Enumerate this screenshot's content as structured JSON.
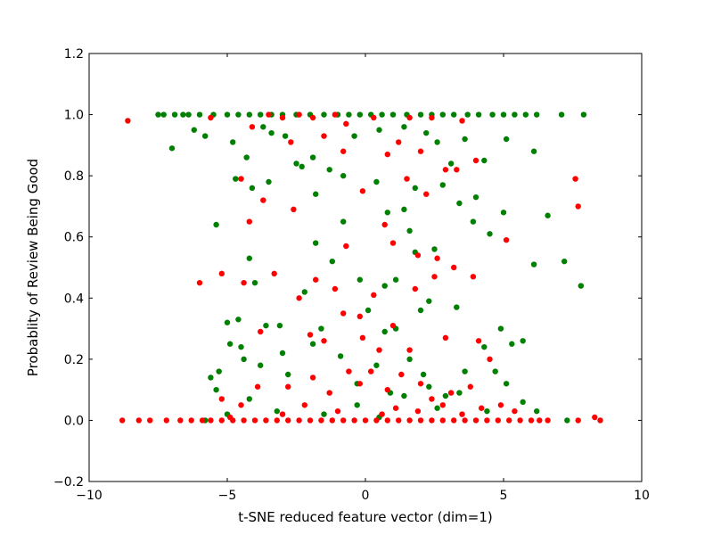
{
  "chart_data": {
    "type": "scatter",
    "xlabel": "t-SNE reduced feature vector (dim=1)",
    "ylabel": "Probablity of Review Being Good",
    "xlim": [
      -10,
      10
    ],
    "ylim": [
      -0.2,
      1.2
    ],
    "xticks": [
      "−10",
      "−5",
      "0",
      "5",
      "10"
    ],
    "yticks": [
      "−0.2",
      "0.0",
      "0.2",
      "0.4",
      "0.6",
      "0.8",
      "1.0",
      "1.2"
    ],
    "grid": false,
    "legend": "none",
    "series": [
      {
        "color": "#008000",
        "points": [
          [
            -7.5,
            1.0
          ],
          [
            -7.3,
            1.0
          ],
          [
            -6.9,
            1.0
          ],
          [
            -6.6,
            1.0
          ],
          [
            -6.4,
            1.0
          ],
          [
            -6.0,
            1.0
          ],
          [
            -5.5,
            1.0
          ],
          [
            -5.0,
            1.0
          ],
          [
            -4.6,
            1.0
          ],
          [
            -4.2,
            1.0
          ],
          [
            -3.8,
            1.0
          ],
          [
            -3.4,
            1.0
          ],
          [
            -3.0,
            1.0
          ],
          [
            -2.5,
            1.0
          ],
          [
            -2.0,
            1.0
          ],
          [
            -1.5,
            1.0
          ],
          [
            -1.0,
            1.0
          ],
          [
            -0.6,
            1.0
          ],
          [
            -0.2,
            1.0
          ],
          [
            0.2,
            1.0
          ],
          [
            0.6,
            1.0
          ],
          [
            1.0,
            1.0
          ],
          [
            1.5,
            1.0
          ],
          [
            2.0,
            1.0
          ],
          [
            2.4,
            1.0
          ],
          [
            2.8,
            1.0
          ],
          [
            3.2,
            1.0
          ],
          [
            3.7,
            1.0
          ],
          [
            4.1,
            1.0
          ],
          [
            4.6,
            1.0
          ],
          [
            5.0,
            1.0
          ],
          [
            5.4,
            1.0
          ],
          [
            5.8,
            1.0
          ],
          [
            6.2,
            1.0
          ],
          [
            7.1,
            1.0
          ],
          [
            7.9,
            1.0
          ],
          [
            -7.0,
            0.89
          ],
          [
            -6.2,
            0.95
          ],
          [
            -5.8,
            0.93
          ],
          [
            -4.8,
            0.91
          ],
          [
            -4.3,
            0.86
          ],
          [
            -3.7,
            0.96
          ],
          [
            -3.4,
            0.94
          ],
          [
            -2.9,
            0.93
          ],
          [
            -2.5,
            0.84
          ],
          [
            -1.9,
            0.86
          ],
          [
            -1.3,
            0.82
          ],
          [
            -0.4,
            0.93
          ],
          [
            0.5,
            0.95
          ],
          [
            1.4,
            0.96
          ],
          [
            2.2,
            0.94
          ],
          [
            2.6,
            0.91
          ],
          [
            3.1,
            0.84
          ],
          [
            3.6,
            0.92
          ],
          [
            4.3,
            0.85
          ],
          [
            5.1,
            0.92
          ],
          [
            6.1,
            0.88
          ],
          [
            -4.7,
            0.79
          ],
          [
            -4.1,
            0.76
          ],
          [
            -3.5,
            0.78
          ],
          [
            -1.8,
            0.74
          ],
          [
            -0.8,
            0.8
          ],
          [
            0.4,
            0.78
          ],
          [
            1.8,
            0.76
          ],
          [
            2.8,
            0.77
          ],
          [
            3.4,
            0.71
          ],
          [
            4.0,
            0.73
          ],
          [
            -5.4,
            0.64
          ],
          [
            -1.8,
            0.58
          ],
          [
            -0.8,
            0.65
          ],
          [
            0.8,
            0.68
          ],
          [
            1.4,
            0.69
          ],
          [
            1.6,
            0.62
          ],
          [
            2.5,
            0.56
          ],
          [
            3.9,
            0.65
          ],
          [
            4.5,
            0.61
          ],
          [
            5.0,
            0.68
          ],
          [
            6.6,
            0.67
          ],
          [
            6.1,
            0.51
          ],
          [
            7.2,
            0.52
          ],
          [
            -4.2,
            0.53
          ],
          [
            -4.0,
            0.45
          ],
          [
            -2.2,
            0.42
          ],
          [
            -1.2,
            0.52
          ],
          [
            0.7,
            0.44
          ],
          [
            1.1,
            0.46
          ],
          [
            1.8,
            0.55
          ],
          [
            2.3,
            0.39
          ],
          [
            3.3,
            0.37
          ],
          [
            7.8,
            0.44
          ],
          [
            -5.0,
            0.32
          ],
          [
            -4.6,
            0.33
          ],
          [
            -3.6,
            0.31
          ],
          [
            -3.1,
            0.31
          ],
          [
            -1.6,
            0.3
          ],
          [
            -0.2,
            0.46
          ],
          [
            0.1,
            0.36
          ],
          [
            0.7,
            0.29
          ],
          [
            1.1,
            0.3
          ],
          [
            2.0,
            0.36
          ],
          [
            -5.6,
            0.14
          ],
          [
            -5.3,
            0.16
          ],
          [
            -4.9,
            0.25
          ],
          [
            -4.5,
            0.24
          ],
          [
            -3.8,
            0.18
          ],
          [
            -2.8,
            0.15
          ],
          [
            -1.9,
            0.25
          ],
          [
            -0.9,
            0.21
          ],
          [
            -0.3,
            0.12
          ],
          [
            0.4,
            0.18
          ],
          [
            1.6,
            0.2
          ],
          [
            2.3,
            0.11
          ],
          [
            2.9,
            0.08
          ],
          [
            3.6,
            0.16
          ],
          [
            4.3,
            0.24
          ],
          [
            4.7,
            0.16
          ],
          [
            5.3,
            0.25
          ],
          [
            5.7,
            0.26
          ],
          [
            5.1,
            0.12
          ],
          [
            6.2,
            0.03
          ],
          [
            -5.8,
            0.0
          ],
          [
            -5.0,
            0.02
          ],
          [
            -4.2,
            0.07
          ],
          [
            -3.2,
            0.03
          ],
          [
            -1.5,
            0.02
          ],
          [
            -0.3,
            0.05
          ],
          [
            0.5,
            0.01
          ],
          [
            1.4,
            0.08
          ],
          [
            2.6,
            0.04
          ],
          [
            3.4,
            0.09
          ],
          [
            4.4,
            0.03
          ],
          [
            5.7,
            0.06
          ],
          [
            7.3,
            0.0
          ],
          [
            -5.4,
            0.1
          ],
          [
            -4.4,
            0.2
          ],
          [
            -3.0,
            0.22
          ],
          [
            0.9,
            0.09
          ],
          [
            2.1,
            0.15
          ],
          [
            4.9,
            0.3
          ],
          [
            -2.3,
            0.83
          ]
        ]
      },
      {
        "color": "#ff0000",
        "points": [
          [
            -8.6,
            0.98
          ],
          [
            -5.6,
            0.99
          ],
          [
            -4.1,
            0.96
          ],
          [
            -3.7,
            0.72
          ],
          [
            -3.5,
            1.0
          ],
          [
            -3.0,
            0.99
          ],
          [
            -2.7,
            0.91
          ],
          [
            -2.4,
            1.0
          ],
          [
            -1.9,
            0.99
          ],
          [
            -1.5,
            0.93
          ],
          [
            -1.1,
            1.0
          ],
          [
            -0.7,
            0.97
          ],
          [
            -0.1,
            0.75
          ],
          [
            0.3,
            0.99
          ],
          [
            0.8,
            0.87
          ],
          [
            1.2,
            0.91
          ],
          [
            1.6,
            0.99
          ],
          [
            2.0,
            0.88
          ],
          [
            2.4,
            0.99
          ],
          [
            2.9,
            0.82
          ],
          [
            3.5,
            0.98
          ],
          [
            4.0,
            0.85
          ],
          [
            -4.5,
            0.79
          ],
          [
            -2.6,
            0.69
          ],
          [
            -0.8,
            0.88
          ],
          [
            0.7,
            0.64
          ],
          [
            1.5,
            0.79
          ],
          [
            2.2,
            0.74
          ],
          [
            3.3,
            0.82
          ],
          [
            7.6,
            0.79
          ],
          [
            7.7,
            0.7
          ],
          [
            5.1,
            0.59
          ],
          [
            -4.2,
            0.65
          ],
          [
            -0.7,
            0.57
          ],
          [
            1.0,
            0.58
          ],
          [
            1.9,
            0.54
          ],
          [
            2.6,
            0.53
          ],
          [
            3.2,
            0.5
          ],
          [
            3.9,
            0.47
          ],
          [
            -6.0,
            0.45
          ],
          [
            -5.2,
            0.48
          ],
          [
            -4.4,
            0.45
          ],
          [
            -3.3,
            0.48
          ],
          [
            -2.4,
            0.4
          ],
          [
            -1.8,
            0.46
          ],
          [
            -1.1,
            0.43
          ],
          [
            -0.8,
            0.35
          ],
          [
            -0.2,
            0.34
          ],
          [
            0.3,
            0.41
          ],
          [
            1.0,
            0.31
          ],
          [
            1.8,
            0.43
          ],
          [
            2.5,
            0.47
          ],
          [
            -3.8,
            0.29
          ],
          [
            -2.0,
            0.28
          ],
          [
            -1.5,
            0.26
          ],
          [
            -0.1,
            0.27
          ],
          [
            0.5,
            0.23
          ],
          [
            1.6,
            0.23
          ],
          [
            2.9,
            0.27
          ],
          [
            4.1,
            0.26
          ],
          [
            -5.2,
            0.07
          ],
          [
            -4.5,
            0.05
          ],
          [
            -3.9,
            0.11
          ],
          [
            -2.8,
            0.11
          ],
          [
            -1.9,
            0.14
          ],
          [
            -1.3,
            0.09
          ],
          [
            -0.6,
            0.16
          ],
          [
            -0.2,
            0.12
          ],
          [
            0.2,
            0.16
          ],
          [
            0.8,
            0.1
          ],
          [
            1.3,
            0.15
          ],
          [
            2.0,
            0.12
          ],
          [
            2.4,
            0.07
          ],
          [
            3.1,
            0.09
          ],
          [
            3.8,
            0.11
          ],
          [
            4.5,
            0.2
          ],
          [
            4.9,
            0.05
          ],
          [
            -8.8,
            0.0
          ],
          [
            -8.2,
            0.0
          ],
          [
            -7.8,
            0.0
          ],
          [
            -7.2,
            0.0
          ],
          [
            -6.7,
            0.0
          ],
          [
            -6.3,
            0.0
          ],
          [
            -5.9,
            0.0
          ],
          [
            -5.6,
            0.0
          ],
          [
            -5.2,
            0.0
          ],
          [
            -4.8,
            0.0
          ],
          [
            -4.4,
            0.0
          ],
          [
            -4.0,
            0.0
          ],
          [
            -3.6,
            0.0
          ],
          [
            -3.2,
            0.0
          ],
          [
            -2.8,
            0.0
          ],
          [
            -2.4,
            0.0
          ],
          [
            -2.0,
            0.0
          ],
          [
            -1.6,
            0.0
          ],
          [
            -1.2,
            0.0
          ],
          [
            -0.8,
            0.0
          ],
          [
            -0.4,
            0.0
          ],
          [
            0.0,
            0.0
          ],
          [
            0.4,
            0.0
          ],
          [
            0.8,
            0.0
          ],
          [
            1.2,
            0.0
          ],
          [
            1.6,
            0.0
          ],
          [
            2.0,
            0.0
          ],
          [
            2.4,
            0.0
          ],
          [
            2.8,
            0.0
          ],
          [
            3.2,
            0.0
          ],
          [
            3.6,
            0.0
          ],
          [
            4.0,
            0.0
          ],
          [
            4.4,
            0.0
          ],
          [
            4.8,
            0.0
          ],
          [
            5.2,
            0.0
          ],
          [
            5.6,
            0.0
          ],
          [
            6.0,
            0.0
          ],
          [
            6.3,
            0.0
          ],
          [
            6.6,
            0.0
          ],
          [
            7.7,
            0.0
          ],
          [
            8.3,
            0.01
          ],
          [
            8.5,
            0.0
          ],
          [
            -3.0,
            0.02
          ],
          [
            -1.0,
            0.03
          ],
          [
            0.6,
            0.02
          ],
          [
            1.9,
            0.03
          ],
          [
            3.5,
            0.02
          ],
          [
            5.4,
            0.03
          ],
          [
            -2.2,
            0.05
          ],
          [
            1.1,
            0.04
          ],
          [
            2.8,
            0.05
          ],
          [
            4.2,
            0.04
          ],
          [
            -4.9,
            0.01
          ]
        ]
      }
    ]
  }
}
